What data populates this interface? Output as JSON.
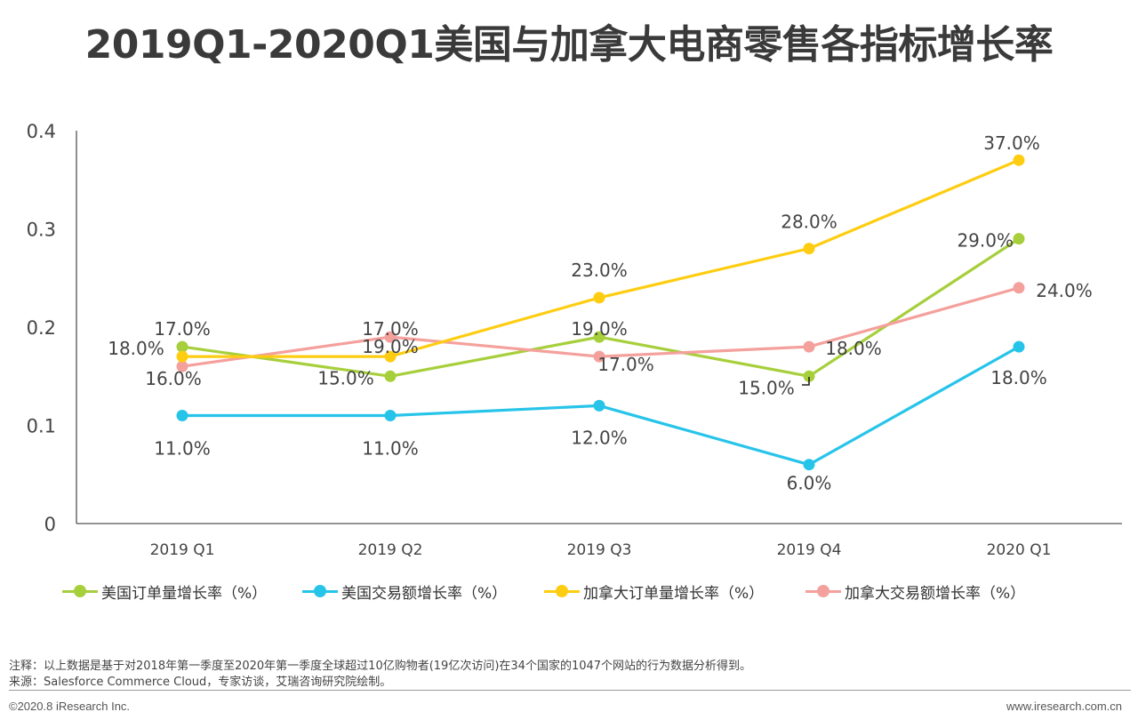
{
  "page": {
    "title": "2019Q1-2020Q1美国与加拿大电商零售各指标增长率",
    "note_line1": "注释：以上数据是基于对2018年第一季度至2020年第一季度全球超过10亿购物者(19亿次访问)在34个国家的1047个网站的行为数据分析得到。",
    "note_line2": "来源：Salesforce Commerce Cloud，专家访谈，艾瑞咨询研究院绘制。",
    "copyright": "©2020.8 iResearch Inc.",
    "website": "www.iresearch.com.cn"
  },
  "chart_data": {
    "type": "line",
    "title": "2019Q1-2020Q1美国与加拿大电商零售各指标增长率",
    "categories": [
      "2019 Q1",
      "2019 Q2",
      "2019 Q3",
      "2019 Q4",
      "2020 Q1"
    ],
    "ylim": [
      0,
      0.4
    ],
    "yticks": [
      0,
      0.1,
      0.2,
      0.3,
      0.4
    ],
    "ytick_labels": [
      "0",
      "0.1",
      "0.2",
      "0.3",
      "0.4"
    ],
    "grid": false,
    "legend_position": "bottom",
    "series": [
      {
        "name": "美国订单量增长率（%）",
        "color": "#a6cf3b",
        "values": [
          0.18,
          0.15,
          0.19,
          0.15,
          0.29
        ],
        "labels": [
          "18.0%",
          "15.0%",
          "19.0%",
          "15.0%",
          "29.0%"
        ]
      },
      {
        "name": "美国交易额增长率（%）",
        "color": "#27c4ea",
        "values": [
          0.11,
          0.11,
          0.12,
          0.06,
          0.18
        ],
        "labels": [
          "11.0%",
          "11.0%",
          "12.0%",
          "6.0%",
          "18.0%"
        ]
      },
      {
        "name": "加拿大订单量增长率（%）",
        "color": "#fecd11",
        "values": [
          0.17,
          0.17,
          0.23,
          0.28,
          0.37
        ],
        "labels": [
          "17.0%",
          "17.0%",
          "23.0%",
          "28.0%",
          "37.0%"
        ]
      },
      {
        "name": "加拿大交易额增长率（%）",
        "color": "#f4a09c",
        "values": [
          0.16,
          0.19,
          0.17,
          0.18,
          0.24
        ],
        "labels": [
          "16.0%",
          "19.0%",
          "17.0%",
          "18.0%",
          "24.0%"
        ]
      }
    ]
  }
}
